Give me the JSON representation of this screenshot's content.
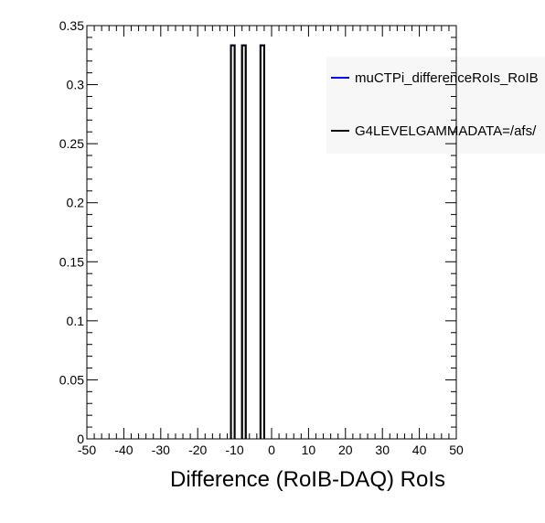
{
  "chart_data": {
    "type": "histogram",
    "title": "",
    "xlabel": "Difference (RoIB-DAQ) RoIs",
    "ylabel": "",
    "xlim": [
      -50,
      50
    ],
    "ylim": [
      0,
      0.35
    ],
    "x_ticks": [
      "-50",
      "-40",
      "-30",
      "-20",
      "-10",
      "0",
      "10",
      "20",
      "30",
      "40",
      "50"
    ],
    "y_ticks": [
      "0",
      "0.05",
      "0.1",
      "0.15",
      "0.2",
      "0.25",
      "0.3",
      "0.35"
    ],
    "grid": false,
    "legend_position": "top-right",
    "bin_width": 1,
    "series": [
      {
        "name": "muCTPi_differenceRoIs_RoIB",
        "color": "#0000ff",
        "bins": [
          {
            "x_low": -11,
            "x_high": -10,
            "value": 0.3333
          },
          {
            "x_low": -8,
            "x_high": -7,
            "value": 0.3333
          },
          {
            "x_low": -3,
            "x_high": -2,
            "value": 0.3333
          }
        ]
      },
      {
        "name": "G4LEVELGAMMADATA=/afs/",
        "color": "#000000",
        "bins": [
          {
            "x_low": -11,
            "x_high": -10,
            "value": 0.3333
          },
          {
            "x_low": -8,
            "x_high": -7,
            "value": 0.3333
          },
          {
            "x_low": -3,
            "x_high": -2,
            "value": 0.3333
          }
        ]
      }
    ]
  }
}
